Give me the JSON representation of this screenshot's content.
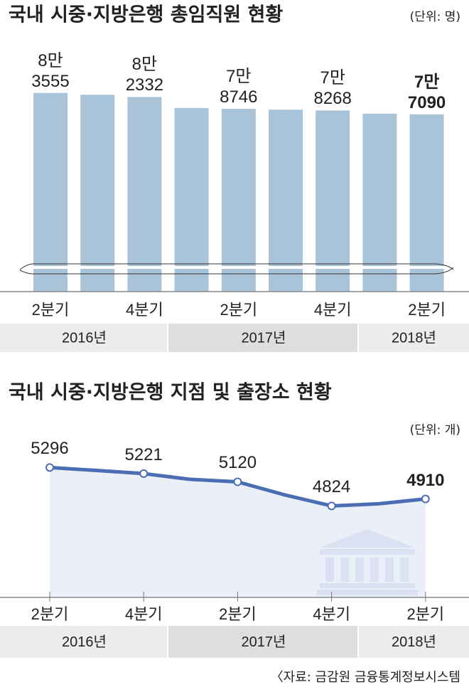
{
  "chart_data": [
    {
      "type": "bar",
      "title": "국내 시중·지방은행 총임직원 현황",
      "unit": "(단위: 명)",
      "categories": [
        "2분기",
        null,
        "4분기",
        null,
        "2분기",
        null,
        "4분기",
        null,
        "2분기"
      ],
      "groups": [
        "2016년",
        "2017년",
        "2018년"
      ],
      "values": [
        83555,
        83000,
        82332,
        79000,
        78746,
        78500,
        78268,
        77300,
        77090
      ],
      "value_labels": [
        "8만\n3555",
        null,
        "8만\n2332",
        null,
        "7만\n8746",
        null,
        "7만\n8268",
        null,
        "7만\n7090"
      ],
      "color": "#a9c3d9",
      "ylim": [
        31000,
        85000
      ],
      "axis_break": true,
      "highlight_last": true
    },
    {
      "type": "line",
      "title": "국내 시중·지방은행 지점 및 출장소 현황",
      "unit": "(단위: 개)",
      "categories": [
        "2분기",
        null,
        "4분기",
        null,
        "2분기",
        null,
        "4분기",
        null,
        "2분기"
      ],
      "groups": [
        "2016년",
        "2017년",
        "2018년"
      ],
      "values": [
        5296,
        5260,
        5221,
        5150,
        5120,
        4960,
        4824,
        4850,
        4910
      ],
      "value_labels": [
        "5296",
        null,
        "5221",
        null,
        "5120",
        null,
        "4824",
        null,
        "4910"
      ],
      "color": "#4a6db3",
      "ylim": [
        3700,
        5500
      ],
      "highlight_last": true
    }
  ],
  "source": "〈자료: 금감원 금융통계정보시스템"
}
